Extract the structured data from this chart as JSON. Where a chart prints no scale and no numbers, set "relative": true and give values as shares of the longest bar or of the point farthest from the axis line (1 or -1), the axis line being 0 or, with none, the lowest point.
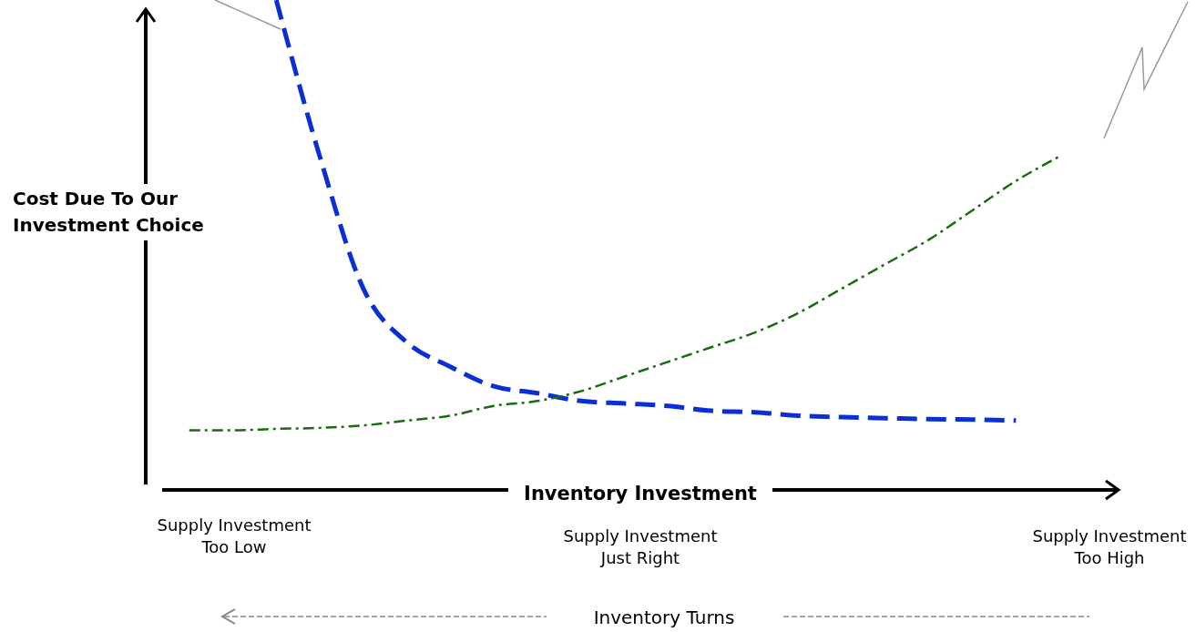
{
  "chart_data": {
    "type": "line",
    "relative": true,
    "xlabel": "Inventory Investment",
    "ylabel": "Cost Due To Our Investment Choice",
    "categories": [
      null,
      null,
      null,
      null,
      null,
      null,
      null,
      null,
      null,
      null,
      null,
      null,
      null,
      null,
      null,
      null,
      null,
      null,
      null,
      null,
      null
    ],
    "series": [
      {
        "color": "#0a2fd6",
        "line_style": "dashed",
        "values": [
          null,
          null,
          1.0,
          0.68,
          0.41,
          0.3,
          0.25,
          0.21,
          0.196,
          0.18,
          0.175,
          0.17,
          0.16,
          0.157,
          0.15,
          0.147,
          0.145,
          0.143,
          0.142,
          0.14,
          null
        ]
      },
      {
        "color": "#1a6b10",
        "line_style": "dashed",
        "values": [
          0.12,
          0.12,
          0.123,
          0.125,
          0.13,
          0.14,
          0.15,
          0.17,
          0.18,
          0.2,
          0.23,
          0.26,
          0.29,
          0.32,
          0.36,
          0.41,
          0.46,
          0.51,
          0.57,
          0.63,
          0.68
        ]
      }
    ],
    "annotations": [
      "Supply Investment Too Low",
      "Supply Investment Just Right",
      "Supply Investment Too High",
      "Inventory Turns"
    ],
    "marker": "none"
  }
}
